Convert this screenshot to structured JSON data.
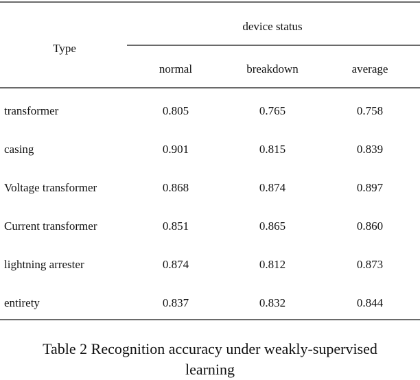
{
  "table": {
    "header": {
      "type": "Type",
      "group": "device status",
      "columns": [
        "normal",
        "breakdown",
        "average"
      ]
    },
    "rows": [
      [
        "transformer",
        "0.805",
        "0.765",
        "0.758"
      ],
      [
        "casing",
        "0.901",
        "0.815",
        "0.839"
      ],
      [
        "Voltage transformer",
        "0.868",
        "0.874",
        "0.897"
      ],
      [
        "Current transformer",
        "0.851",
        "0.865",
        "0.860"
      ],
      [
        "lightning arrester",
        "0.874",
        "0.812",
        "0.873"
      ],
      [
        "entirety",
        "0.837",
        "0.832",
        "0.844"
      ]
    ],
    "caption": "Table 2 Recognition accuracy under weakly-supervised learning"
  }
}
